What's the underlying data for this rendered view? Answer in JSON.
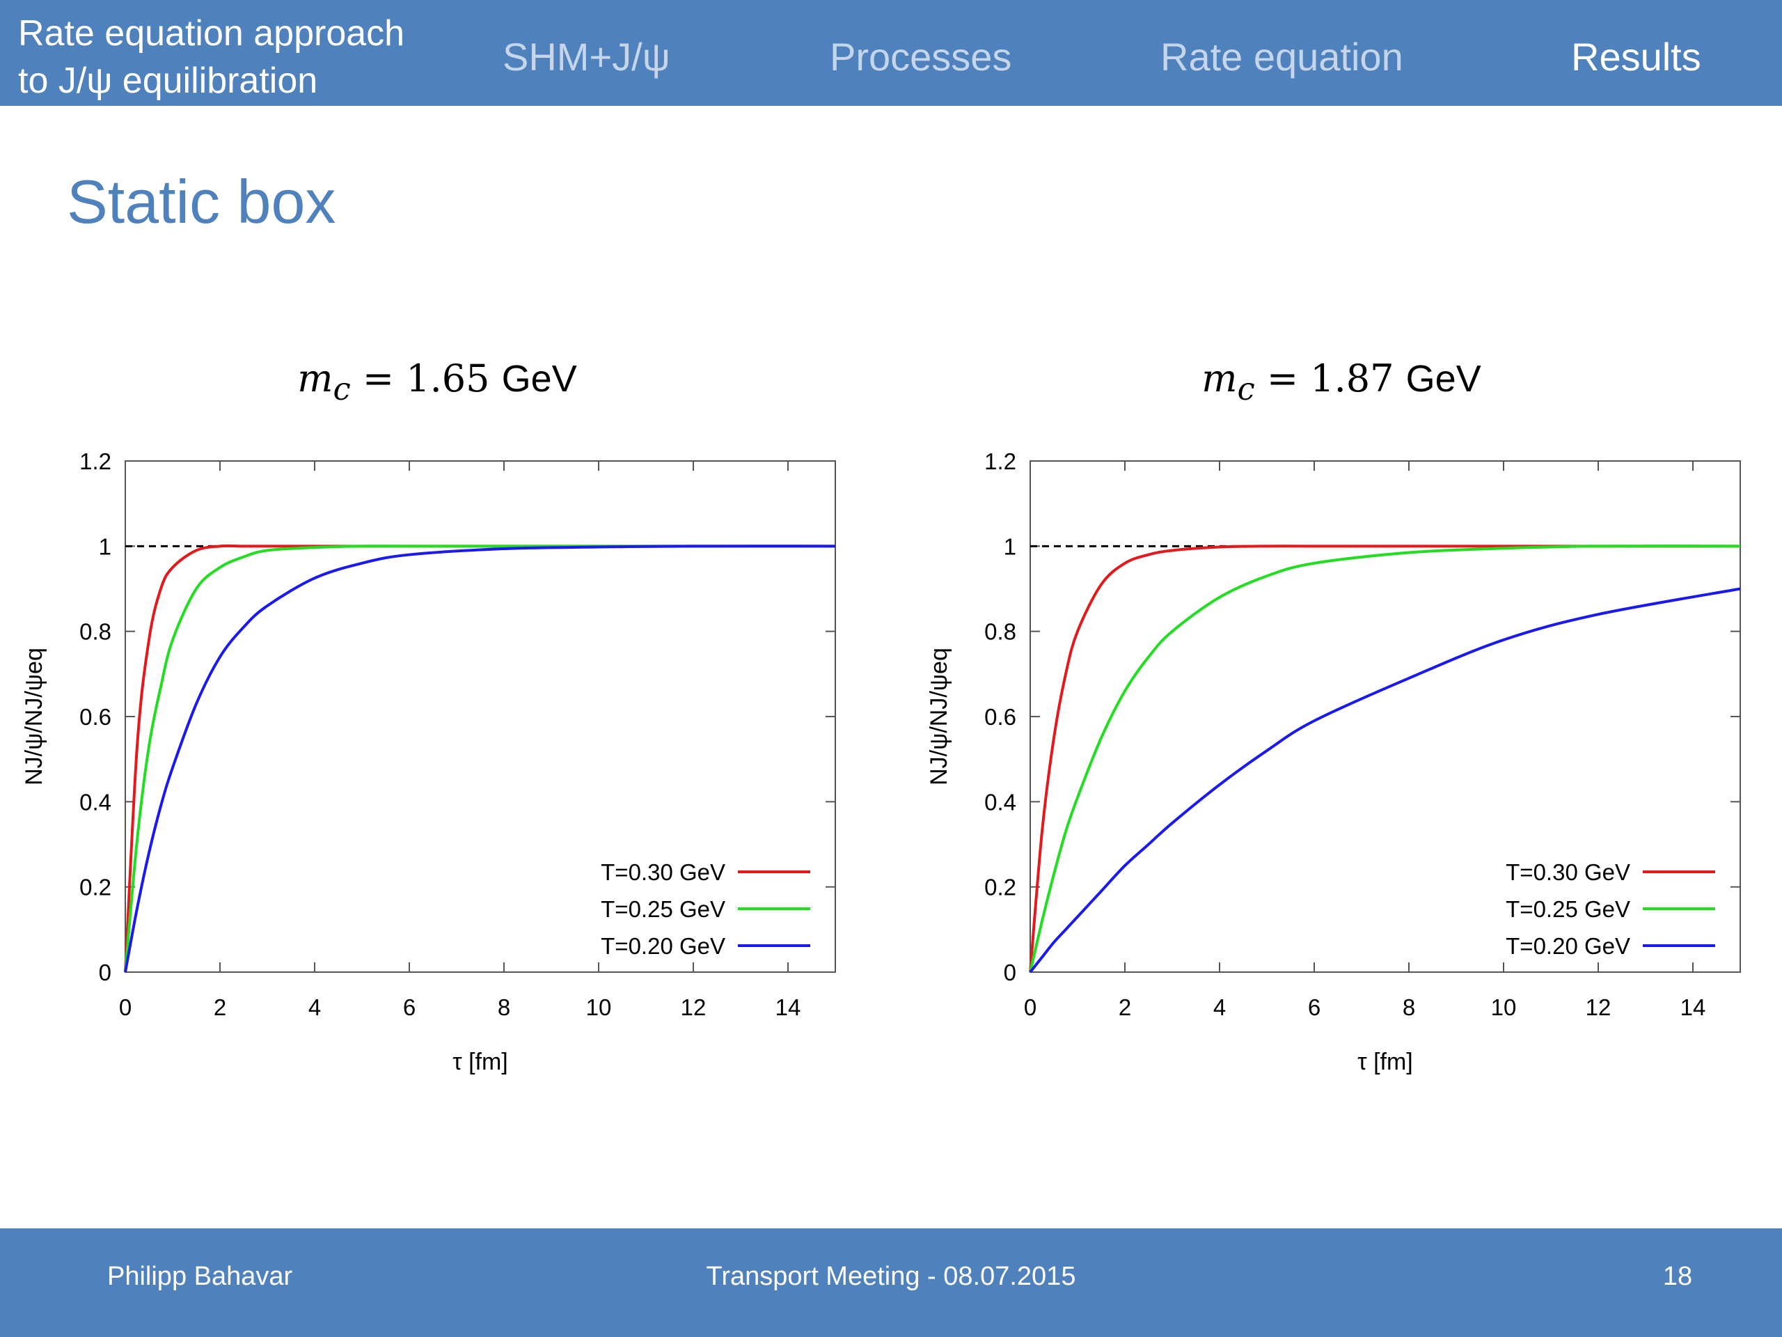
{
  "header": {
    "title_line1": "Rate equation approach",
    "title_line2": "to J/ψ equilibration",
    "nav": [
      {
        "label": "SHM+J/ψ",
        "active": false
      },
      {
        "label": "Processes",
        "active": false
      },
      {
        "label": "Rate equation",
        "active": false
      },
      {
        "label": "Results",
        "active": true
      }
    ]
  },
  "slide": {
    "title": "Static box"
  },
  "colors": {
    "accent": "#4f81bd",
    "red": "#e31a1c",
    "green": "#22dd22",
    "blue": "#1a1aee"
  },
  "chart_data": [
    {
      "type": "line",
      "subtitle_math": "m",
      "subtitle_sub": "c",
      "subtitle_eq": " = 1.65 ",
      "subtitle_unit": "GeV",
      "xlabel": "τ [fm]",
      "ylabel": "NJ/ψ/NJ/ψeq",
      "xlim": [
        0,
        15
      ],
      "ylim": [
        0,
        1.2
      ],
      "xticks": [
        "0",
        "2",
        "4",
        "6",
        "8",
        "10",
        "12",
        "14"
      ],
      "yticks": [
        "0",
        "0.2",
        "0.4",
        "0.6",
        "0.8",
        "1",
        "1.2"
      ],
      "xtick_values": [
        0,
        2,
        4,
        6,
        8,
        10,
        12,
        14
      ],
      "ytick_values": [
        0,
        0.2,
        0.4,
        0.6,
        0.8,
        1,
        1.2
      ],
      "reference_line": 1.0,
      "legend_position": "bottom-right",
      "x": [
        0,
        0.25,
        0.5,
        0.75,
        1,
        1.5,
        2,
        2.5,
        3,
        4,
        5,
        6,
        8,
        10,
        12,
        15
      ],
      "series": [
        {
          "name": "T=0.30 GeV",
          "color": "#e31a1c",
          "values": [
            0,
            0.53,
            0.78,
            0.9,
            0.95,
            0.99,
            1.0,
            1.0,
            1.0,
            1.0,
            1.0,
            1.0,
            1.0,
            1.0,
            1.0,
            1.0
          ]
        },
        {
          "name": "T=0.25 GeV",
          "color": "#22dd22",
          "values": [
            0,
            0.31,
            0.53,
            0.67,
            0.78,
            0.9,
            0.95,
            0.975,
            0.99,
            0.997,
            1.0,
            1.0,
            1.0,
            1.0,
            1.0,
            1.0
          ]
        },
        {
          "name": "T=0.20 GeV",
          "color": "#1a1aee",
          "values": [
            0,
            0.15,
            0.28,
            0.39,
            0.48,
            0.63,
            0.74,
            0.81,
            0.86,
            0.925,
            0.96,
            0.98,
            0.994,
            0.998,
            1.0,
            1.0
          ]
        }
      ]
    },
    {
      "type": "line",
      "subtitle_math": "m",
      "subtitle_sub": "c",
      "subtitle_eq": " = 1.87 ",
      "subtitle_unit": "GeV",
      "xlabel": "τ [fm]",
      "ylabel": "NJ/ψ/NJ/ψeq",
      "xlim": [
        0,
        15
      ],
      "ylim": [
        0,
        1.2
      ],
      "xticks": [
        "0",
        "2",
        "4",
        "6",
        "8",
        "10",
        "12",
        "14"
      ],
      "yticks": [
        "0",
        "0.2",
        "0.4",
        "0.6",
        "0.8",
        "1",
        "1.2"
      ],
      "xtick_values": [
        0,
        2,
        4,
        6,
        8,
        10,
        12,
        14
      ],
      "ytick_values": [
        0,
        0.2,
        0.4,
        0.6,
        0.8,
        1,
        1.2
      ],
      "reference_line": 1.0,
      "legend_position": "bottom-right",
      "x": [
        0,
        0.25,
        0.5,
        0.75,
        1,
        1.5,
        2,
        2.5,
        3,
        4,
        5,
        6,
        8,
        10,
        12,
        15
      ],
      "series": [
        {
          "name": "T=0.30 GeV",
          "color": "#e31a1c",
          "values": [
            0,
            0.33,
            0.55,
            0.7,
            0.8,
            0.91,
            0.96,
            0.98,
            0.99,
            0.998,
            1.0,
            1.0,
            1.0,
            1.0,
            1.0,
            1.0
          ]
        },
        {
          "name": "T=0.25 GeV",
          "color": "#22dd22",
          "values": [
            0,
            0.12,
            0.23,
            0.33,
            0.41,
            0.55,
            0.66,
            0.74,
            0.8,
            0.88,
            0.93,
            0.96,
            0.985,
            0.995,
            1.0,
            1.0
          ]
        },
        {
          "name": "T=0.20 GeV",
          "color": "#1a1aee",
          "values": [
            0,
            0.035,
            0.07,
            0.1,
            0.13,
            0.19,
            0.25,
            0.3,
            0.35,
            0.44,
            0.52,
            0.59,
            0.69,
            0.78,
            0.84,
            0.9
          ]
        }
      ]
    }
  ],
  "footer": {
    "author": "Philipp Bahavar",
    "event": "Transport Meeting -  08.07.2015",
    "page": "18"
  }
}
